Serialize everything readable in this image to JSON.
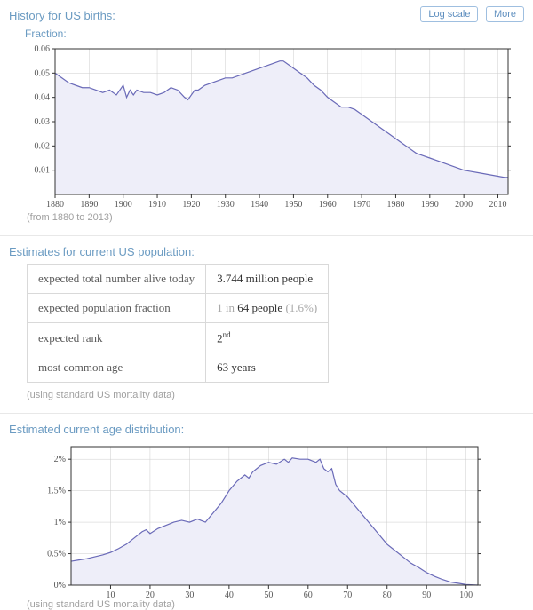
{
  "p1": {
    "title": "History for US births:",
    "subtitle": "Fraction:",
    "caption": "(from 1880 to 2013)",
    "btn_log": "Log scale",
    "btn_more": "More",
    "chart": {
      "type": "line-area",
      "xlim": [
        1880,
        2013
      ],
      "ylim": [
        0,
        0.06
      ],
      "xticks": [
        1880,
        1890,
        1900,
        1910,
        1920,
        1930,
        1940,
        1950,
        1960,
        1970,
        1980,
        1990,
        2000,
        2010
      ],
      "yticks": [
        0.01,
        0.02,
        0.03,
        0.04,
        0.05,
        0.06
      ],
      "line_color": "#6a6ab8",
      "fill_color": "#eeeef9",
      "grid_color": "#cccccc",
      "axis_color": "#333333",
      "background_color": "#ffffff",
      "tick_font_size": 10,
      "tick_font_family": "Georgia, 'Times New Roman', serif",
      "data": [
        [
          1880,
          0.05
        ],
        [
          1882,
          0.048
        ],
        [
          1884,
          0.046
        ],
        [
          1886,
          0.045
        ],
        [
          1888,
          0.044
        ],
        [
          1890,
          0.044
        ],
        [
          1892,
          0.043
        ],
        [
          1894,
          0.042
        ],
        [
          1896,
          0.043
        ],
        [
          1898,
          0.041
        ],
        [
          1900,
          0.045
        ],
        [
          1901,
          0.04
        ],
        [
          1902,
          0.043
        ],
        [
          1903,
          0.041
        ],
        [
          1904,
          0.043
        ],
        [
          1906,
          0.042
        ],
        [
          1908,
          0.042
        ],
        [
          1910,
          0.041
        ],
        [
          1912,
          0.042
        ],
        [
          1914,
          0.044
        ],
        [
          1916,
          0.043
        ],
        [
          1918,
          0.04
        ],
        [
          1919,
          0.039
        ],
        [
          1920,
          0.041
        ],
        [
          1921,
          0.043
        ],
        [
          1922,
          0.043
        ],
        [
          1924,
          0.045
        ],
        [
          1926,
          0.046
        ],
        [
          1928,
          0.047
        ],
        [
          1930,
          0.048
        ],
        [
          1932,
          0.048
        ],
        [
          1934,
          0.049
        ],
        [
          1936,
          0.05
        ],
        [
          1938,
          0.051
        ],
        [
          1940,
          0.052
        ],
        [
          1942,
          0.053
        ],
        [
          1944,
          0.054
        ],
        [
          1946,
          0.055
        ],
        [
          1947,
          0.055
        ],
        [
          1948,
          0.054
        ],
        [
          1950,
          0.052
        ],
        [
          1952,
          0.05
        ],
        [
          1954,
          0.048
        ],
        [
          1956,
          0.045
        ],
        [
          1958,
          0.043
        ],
        [
          1960,
          0.04
        ],
        [
          1962,
          0.038
        ],
        [
          1964,
          0.036
        ],
        [
          1966,
          0.036
        ],
        [
          1968,
          0.035
        ],
        [
          1970,
          0.033
        ],
        [
          1972,
          0.031
        ],
        [
          1974,
          0.029
        ],
        [
          1976,
          0.027
        ],
        [
          1978,
          0.025
        ],
        [
          1980,
          0.023
        ],
        [
          1982,
          0.021
        ],
        [
          1984,
          0.019
        ],
        [
          1986,
          0.017
        ],
        [
          1988,
          0.016
        ],
        [
          1990,
          0.015
        ],
        [
          1992,
          0.014
        ],
        [
          1994,
          0.013
        ],
        [
          1996,
          0.012
        ],
        [
          1998,
          0.011
        ],
        [
          2000,
          0.01
        ],
        [
          2002,
          0.0095
        ],
        [
          2004,
          0.009
        ],
        [
          2006,
          0.0085
        ],
        [
          2008,
          0.008
        ],
        [
          2010,
          0.0075
        ],
        [
          2012,
          0.007
        ],
        [
          2013,
          0.007
        ]
      ]
    }
  },
  "p2": {
    "title": "Estimates for current US population:",
    "caption": "(using standard US mortality data)",
    "rows": [
      {
        "label": "expected total number alive today",
        "value": "3.744 million people"
      },
      {
        "label": "expected population fraction",
        "value_prefix": "1 in ",
        "value_main": "64 people",
        "value_suffix": " (1.6%)"
      },
      {
        "label": "expected rank",
        "value_main": "2",
        "value_sup": "nd"
      },
      {
        "label": "most common age",
        "value": "63 years"
      }
    ]
  },
  "p3": {
    "title": "Estimated current age distribution:",
    "caption": "(using standard US mortality data)",
    "chart": {
      "type": "line-area",
      "xlim": [
        0,
        103
      ],
      "ylim": [
        0,
        2.2
      ],
      "xticks": [
        10,
        20,
        30,
        40,
        50,
        60,
        70,
        80,
        90,
        100
      ],
      "yticks": [
        0,
        0.5,
        1,
        1.5,
        2
      ],
      "ytick_labels": [
        "0%",
        "0.5%",
        "1%",
        "1.5%",
        "2%"
      ],
      "line_color": "#6a6ab8",
      "fill_color": "#eeeef9",
      "grid_color": "#cccccc",
      "axis_color": "#333333",
      "background_color": "#ffffff",
      "tick_font_size": 10,
      "tick_font_family": "Georgia, 'Times New Roman', serif",
      "data": [
        [
          0,
          0.38
        ],
        [
          2,
          0.4
        ],
        [
          4,
          0.42
        ],
        [
          6,
          0.45
        ],
        [
          8,
          0.48
        ],
        [
          10,
          0.52
        ],
        [
          12,
          0.58
        ],
        [
          14,
          0.65
        ],
        [
          16,
          0.75
        ],
        [
          18,
          0.85
        ],
        [
          19,
          0.88
        ],
        [
          20,
          0.82
        ],
        [
          22,
          0.9
        ],
        [
          24,
          0.95
        ],
        [
          26,
          1.0
        ],
        [
          28,
          1.03
        ],
        [
          30,
          1.0
        ],
        [
          32,
          1.05
        ],
        [
          34,
          1.0
        ],
        [
          36,
          1.15
        ],
        [
          38,
          1.3
        ],
        [
          40,
          1.5
        ],
        [
          42,
          1.65
        ],
        [
          44,
          1.75
        ],
        [
          45,
          1.7
        ],
        [
          46,
          1.8
        ],
        [
          48,
          1.9
        ],
        [
          50,
          1.95
        ],
        [
          52,
          1.92
        ],
        [
          54,
          2.0
        ],
        [
          55,
          1.95
        ],
        [
          56,
          2.02
        ],
        [
          58,
          2.0
        ],
        [
          60,
          2.0
        ],
        [
          62,
          1.95
        ],
        [
          63,
          2.0
        ],
        [
          64,
          1.85
        ],
        [
          65,
          1.8
        ],
        [
          66,
          1.85
        ],
        [
          67,
          1.6
        ],
        [
          68,
          1.5
        ],
        [
          70,
          1.4
        ],
        [
          72,
          1.25
        ],
        [
          74,
          1.1
        ],
        [
          76,
          0.95
        ],
        [
          78,
          0.8
        ],
        [
          80,
          0.65
        ],
        [
          82,
          0.55
        ],
        [
          84,
          0.45
        ],
        [
          86,
          0.35
        ],
        [
          88,
          0.28
        ],
        [
          90,
          0.2
        ],
        [
          92,
          0.14
        ],
        [
          94,
          0.09
        ],
        [
          96,
          0.05
        ],
        [
          98,
          0.03
        ],
        [
          100,
          0.01
        ],
        [
          103,
          0.0
        ]
      ]
    }
  }
}
